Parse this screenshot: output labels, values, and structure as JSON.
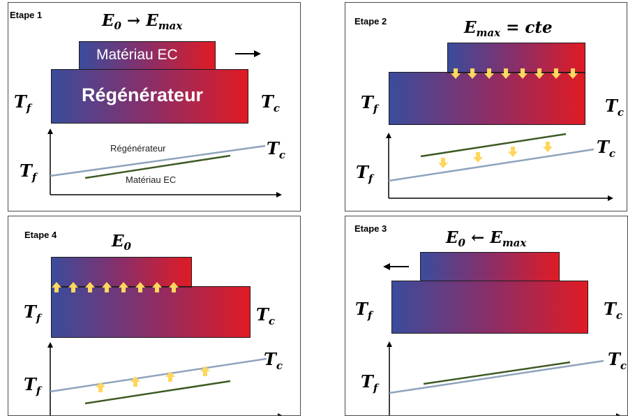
{
  "panels": {
    "p1": {
      "label": "Etape 1",
      "eq_a": "E",
      "eq_a_sub": "0",
      "eq_arrow": "→",
      "eq_b": "E",
      "eq_b_sub": "max",
      "material": "Matériau EC",
      "regenerator": "Régénérateur",
      "t_cold": "T",
      "t_cold_sub": "f",
      "t_hot": "T",
      "t_hot_sub": "c",
      "line_regen": "Régénérateur",
      "line_material": "Matériau EC"
    },
    "p2": {
      "label": "Etape 2",
      "eq_a": "E",
      "eq_a_sub": "max",
      "eq_rest": " = cte",
      "t_cold": "T",
      "t_cold_sub": "f",
      "t_hot": "T",
      "t_hot_sub": "c"
    },
    "p3": {
      "label": "Etape 3",
      "eq_a": "E",
      "eq_a_sub": "0",
      "eq_arrow": "←",
      "eq_b": "E",
      "eq_b_sub": "max",
      "t_cold": "T",
      "t_cold_sub": "f",
      "t_hot": "T",
      "t_hot_sub": "c"
    },
    "p4": {
      "label": "Etape 4",
      "eq_a": "E",
      "eq_a_sub": "0",
      "t_cold": "T",
      "t_cold_sub": "f",
      "t_hot": "T",
      "t_hot_sub": "c"
    }
  },
  "colors": {
    "gradient_cold": "#3a4c9c",
    "gradient_hot": "#e01b24",
    "regenerator_line": "#8fa3bd",
    "material_line": "#3e5a24",
    "heat_arrow": "#ffd75e"
  }
}
